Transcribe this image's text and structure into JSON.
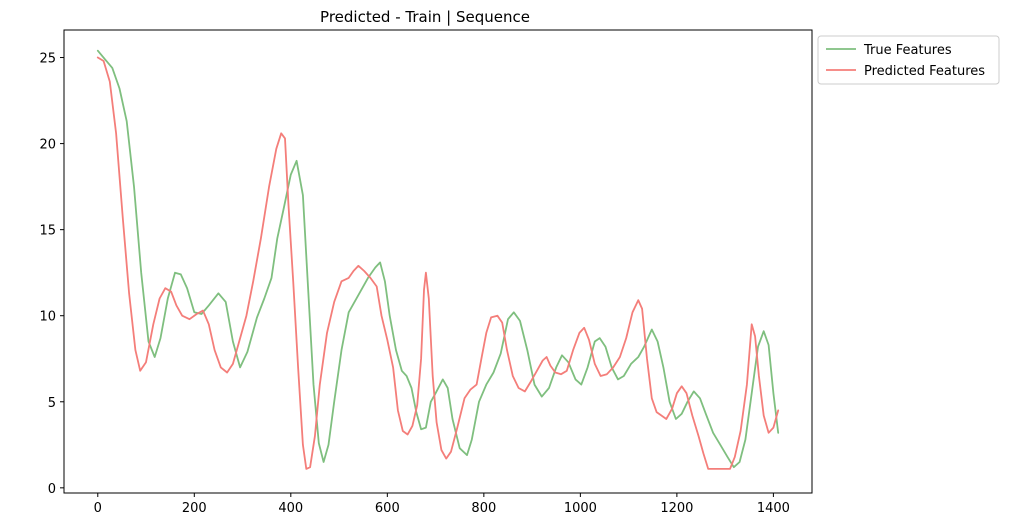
{
  "chart_data": {
    "type": "line",
    "title": "Predicted - Train | Sequence",
    "xlabel": "",
    "ylabel": "",
    "xlim": [
      -70,
      1480
    ],
    "ylim": [
      -0.3,
      26.6
    ],
    "xticks": [
      0,
      200,
      400,
      600,
      800,
      1000,
      1200,
      1400
    ],
    "yticks": [
      0,
      5,
      10,
      15,
      20,
      25
    ],
    "grid": false,
    "legend_position": "outside-top-right",
    "colors": {
      "true": "#7fbf7f",
      "predicted": "#f47e7a"
    },
    "series": [
      {
        "name": "True Features",
        "color": "#7fbf7f",
        "points": [
          [
            0,
            25.4
          ],
          [
            15,
            24.9
          ],
          [
            30,
            24.4
          ],
          [
            45,
            23.2
          ],
          [
            60,
            21.3
          ],
          [
            75,
            17.5
          ],
          [
            90,
            12.5
          ],
          [
            105,
            8.5
          ],
          [
            118,
            7.6
          ],
          [
            130,
            8.7
          ],
          [
            145,
            11.0
          ],
          [
            160,
            12.5
          ],
          [
            172,
            12.4
          ],
          [
            185,
            11.6
          ],
          [
            200,
            10.2
          ],
          [
            215,
            10.1
          ],
          [
            230,
            10.6
          ],
          [
            250,
            11.3
          ],
          [
            265,
            10.8
          ],
          [
            280,
            8.5
          ],
          [
            295,
            7.0
          ],
          [
            310,
            7.9
          ],
          [
            330,
            9.9
          ],
          [
            345,
            11.0
          ],
          [
            360,
            12.2
          ],
          [
            372,
            14.5
          ],
          [
            385,
            16.2
          ],
          [
            400,
            18.2
          ],
          [
            412,
            19.0
          ],
          [
            425,
            17.0
          ],
          [
            435,
            12.0
          ],
          [
            447,
            6.0
          ],
          [
            458,
            2.6
          ],
          [
            468,
            1.5
          ],
          [
            478,
            2.5
          ],
          [
            490,
            5.0
          ],
          [
            505,
            8.0
          ],
          [
            520,
            10.2
          ],
          [
            540,
            11.2
          ],
          [
            560,
            12.2
          ],
          [
            575,
            12.8
          ],
          [
            585,
            13.1
          ],
          [
            595,
            12.0
          ],
          [
            605,
            10.0
          ],
          [
            618,
            8.0
          ],
          [
            630,
            6.8
          ],
          [
            640,
            6.5
          ],
          [
            650,
            5.8
          ],
          [
            660,
            4.4
          ],
          [
            670,
            3.4
          ],
          [
            680,
            3.5
          ],
          [
            690,
            5.0
          ],
          [
            700,
            5.5
          ],
          [
            715,
            6.3
          ],
          [
            725,
            5.8
          ],
          [
            735,
            4.0
          ],
          [
            750,
            2.3
          ],
          [
            765,
            1.9
          ],
          [
            775,
            2.8
          ],
          [
            790,
            5.0
          ],
          [
            805,
            6.0
          ],
          [
            820,
            6.7
          ],
          [
            835,
            7.8
          ],
          [
            850,
            9.8
          ],
          [
            862,
            10.2
          ],
          [
            875,
            9.7
          ],
          [
            890,
            8.0
          ],
          [
            905,
            6.0
          ],
          [
            920,
            5.3
          ],
          [
            935,
            5.8
          ],
          [
            950,
            7.0
          ],
          [
            962,
            7.7
          ],
          [
            975,
            7.3
          ],
          [
            990,
            6.3
          ],
          [
            1002,
            6.0
          ],
          [
            1015,
            7.0
          ],
          [
            1030,
            8.5
          ],
          [
            1040,
            8.7
          ],
          [
            1052,
            8.2
          ],
          [
            1065,
            7.0
          ],
          [
            1078,
            6.3
          ],
          [
            1090,
            6.5
          ],
          [
            1105,
            7.2
          ],
          [
            1120,
            7.6
          ],
          [
            1132,
            8.2
          ],
          [
            1148,
            9.2
          ],
          [
            1160,
            8.5
          ],
          [
            1172,
            7.0
          ],
          [
            1185,
            5.0
          ],
          [
            1198,
            4.0
          ],
          [
            1210,
            4.3
          ],
          [
            1222,
            5.0
          ],
          [
            1235,
            5.6
          ],
          [
            1248,
            5.2
          ],
          [
            1260,
            4.3
          ],
          [
            1275,
            3.2
          ],
          [
            1290,
            2.5
          ],
          [
            1305,
            1.8
          ],
          [
            1318,
            1.2
          ],
          [
            1330,
            1.5
          ],
          [
            1342,
            2.8
          ],
          [
            1355,
            5.5
          ],
          [
            1368,
            8.2
          ],
          [
            1380,
            9.1
          ],
          [
            1390,
            8.3
          ],
          [
            1400,
            5.5
          ],
          [
            1410,
            3.2
          ]
        ]
      },
      {
        "name": "Predicted Features",
        "color": "#f47e7a",
        "points": [
          [
            0,
            25.0
          ],
          [
            12,
            24.8
          ],
          [
            25,
            23.6
          ],
          [
            38,
            20.6
          ],
          [
            52,
            15.6
          ],
          [
            65,
            11.3
          ],
          [
            78,
            8.0
          ],
          [
            88,
            6.8
          ],
          [
            100,
            7.3
          ],
          [
            115,
            9.5
          ],
          [
            128,
            11.0
          ],
          [
            140,
            11.6
          ],
          [
            152,
            11.4
          ],
          [
            163,
            10.6
          ],
          [
            175,
            10.0
          ],
          [
            190,
            9.8
          ],
          [
            205,
            10.1
          ],
          [
            218,
            10.3
          ],
          [
            230,
            9.5
          ],
          [
            242,
            8.0
          ],
          [
            255,
            7.0
          ],
          [
            268,
            6.7
          ],
          [
            280,
            7.2
          ],
          [
            292,
            8.4
          ],
          [
            308,
            10.0
          ],
          [
            322,
            12.0
          ],
          [
            338,
            14.5
          ],
          [
            355,
            17.5
          ],
          [
            370,
            19.7
          ],
          [
            380,
            20.6
          ],
          [
            388,
            20.3
          ],
          [
            395,
            16.5
          ],
          [
            405,
            12.0
          ],
          [
            415,
            7.0
          ],
          [
            425,
            2.5
          ],
          [
            432,
            1.1
          ],
          [
            440,
            1.2
          ],
          [
            450,
            3.0
          ],
          [
            460,
            6.0
          ],
          [
            475,
            9.0
          ],
          [
            490,
            10.8
          ],
          [
            505,
            12.0
          ],
          [
            520,
            12.2
          ],
          [
            530,
            12.6
          ],
          [
            540,
            12.9
          ],
          [
            552,
            12.6
          ],
          [
            565,
            12.2
          ],
          [
            578,
            11.7
          ],
          [
            588,
            10.0
          ],
          [
            600,
            8.6
          ],
          [
            612,
            7.0
          ],
          [
            622,
            4.5
          ],
          [
            632,
            3.3
          ],
          [
            642,
            3.1
          ],
          [
            652,
            3.6
          ],
          [
            662,
            4.8
          ],
          [
            670,
            7.5
          ],
          [
            676,
            11.5
          ],
          [
            680,
            12.5
          ],
          [
            686,
            11.0
          ],
          [
            694,
            6.5
          ],
          [
            702,
            3.8
          ],
          [
            712,
            2.2
          ],
          [
            722,
            1.7
          ],
          [
            732,
            2.1
          ],
          [
            745,
            3.5
          ],
          [
            760,
            5.2
          ],
          [
            772,
            5.7
          ],
          [
            785,
            6.0
          ],
          [
            795,
            7.5
          ],
          [
            805,
            9.0
          ],
          [
            815,
            9.9
          ],
          [
            828,
            10.0
          ],
          [
            838,
            9.6
          ],
          [
            848,
            8.0
          ],
          [
            860,
            6.5
          ],
          [
            872,
            5.8
          ],
          [
            885,
            5.6
          ],
          [
            898,
            6.2
          ],
          [
            910,
            6.8
          ],
          [
            922,
            7.4
          ],
          [
            930,
            7.6
          ],
          [
            938,
            7.1
          ],
          [
            948,
            6.7
          ],
          [
            960,
            6.6
          ],
          [
            972,
            6.8
          ],
          [
            985,
            8.0
          ],
          [
            998,
            9.0
          ],
          [
            1008,
            9.3
          ],
          [
            1018,
            8.6
          ],
          [
            1030,
            7.2
          ],
          [
            1042,
            6.5
          ],
          [
            1055,
            6.6
          ],
          [
            1068,
            7.0
          ],
          [
            1082,
            7.6
          ],
          [
            1095,
            8.7
          ],
          [
            1108,
            10.2
          ],
          [
            1120,
            10.9
          ],
          [
            1128,
            10.4
          ],
          [
            1138,
            7.5
          ],
          [
            1148,
            5.2
          ],
          [
            1158,
            4.4
          ],
          [
            1168,
            4.2
          ],
          [
            1178,
            4.0
          ],
          [
            1190,
            4.6
          ],
          [
            1200,
            5.5
          ],
          [
            1210,
            5.9
          ],
          [
            1220,
            5.5
          ],
          [
            1232,
            4.2
          ],
          [
            1245,
            3.0
          ],
          [
            1255,
            2.0
          ],
          [
            1265,
            1.1
          ],
          [
            1280,
            1.1
          ],
          [
            1295,
            1.1
          ],
          [
            1310,
            1.1
          ],
          [
            1320,
            1.8
          ],
          [
            1332,
            3.3
          ],
          [
            1345,
            6.0
          ],
          [
            1355,
            9.5
          ],
          [
            1362,
            8.8
          ],
          [
            1370,
            6.5
          ],
          [
            1380,
            4.2
          ],
          [
            1390,
            3.2
          ],
          [
            1400,
            3.5
          ],
          [
            1410,
            4.5
          ]
        ]
      }
    ]
  }
}
